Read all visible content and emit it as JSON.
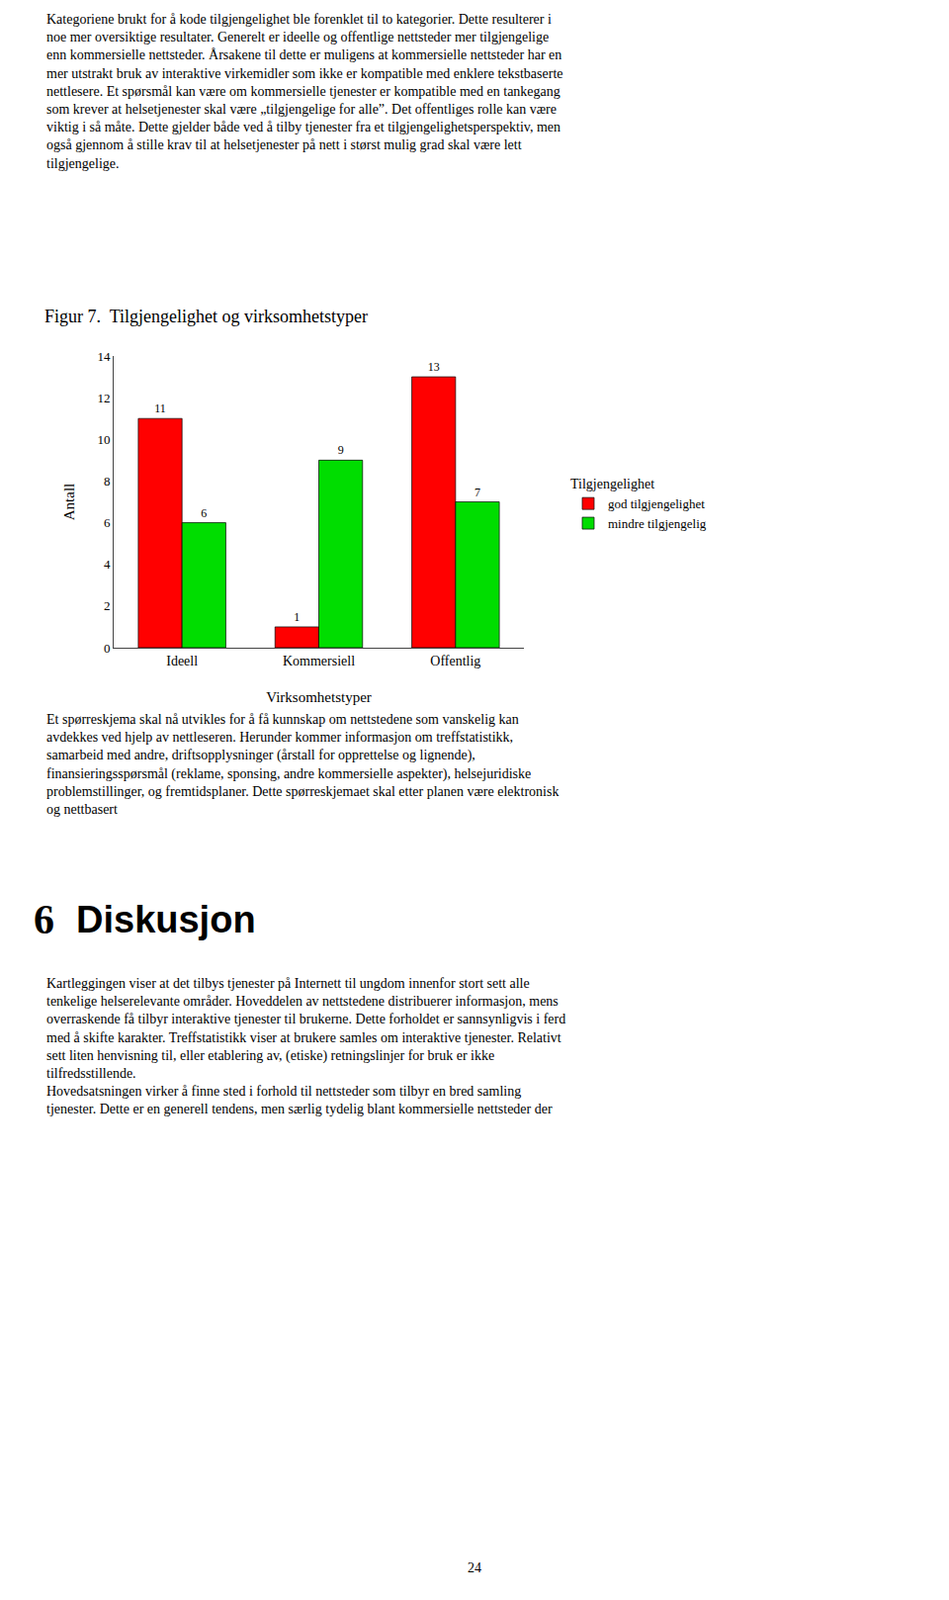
{
  "chart_data": {
    "type": "bar",
    "title": "Figur 7.  Tilgjengelighet og virksomhetstyper",
    "categories": [
      "Ideell",
      "Kommersiell",
      "Offentlig"
    ],
    "series": [
      {
        "name": "god tilgjengelighet",
        "color": "#ff0000",
        "values": [
          11,
          1,
          13
        ]
      },
      {
        "name": "mindre tilgjengelig",
        "color": "#00dd00",
        "values": [
          6,
          9,
          7
        ]
      }
    ],
    "xlabel": "Virksomhetstyper",
    "ylabel": "Antall",
    "ylim": [
      0,
      14
    ],
    "yticks": [
      0,
      2,
      4,
      6,
      8,
      10,
      12,
      14
    ],
    "legend_title": "Tilgjengelighet",
    "legend": "right",
    "grid": false,
    "data_labels": true,
    "annotations": [
      "Kategoriene brukt for å kode tilgjengelighet ble forenklet til to kategorier. Dette resulterer i\nnoe mer oversiktige resultater. Generelt er ideelle og offentlige nettsteder mer tilgjengelige\nenn kommersielle nettsteder. Årsakene til dette er muligens at kommersielle nettsteder har en\nmer utstrakt bruk av interaktive virkemidler som ikke er kompatible med enklere tekstbaserte\nnettlesere. Et spørsmål kan være om kommersielle tjenester er kompatible med en tankegang\nsom krever at helsetjenester skal være „tilgjengelige for alle”. Det offentliges rolle kan være\nviktig i så måte. Dette gjelder både ved å tilby tjenester fra et tilgjengelighetsperspektiv, men\nogså gjennom å stille krav til at helsetjenester på nett i størst mulig grad skal være lett\ntilgjengelige.",
      "Et spørreskjema skal nå utvikles for å få kunnskap om nettstedene som vanskelig kan\navdekkes ved hjelp av nettleseren. Herunder kommer informasjon om treffstatistikk,\nsamarbeid med andre, driftsopplysninger (årstall for opprettelse og lignende),\nfinansieringsspørsmål (reklame, sponsing, andre kommersielle aspekter), helsejuridiske\nproblemstillinger, og fremtidsplaner. Dette spørreskjemaet skal etter planen være elektronisk\nog nettbasert",
      "6",
      "Diskusjon",
      "Kartleggingen viser at det tilbys tjenester på Internett til ungdom innenfor stort sett alle\ntenkelige helserelevante områder. Hoveddelen av nettstedene distribuerer informasjon, mens\noverraskende få tilbyr interaktive tjenester til brukerne. Dette forholdet er sannsynligvis i ferd\nmed å skifte karakter. Treffstatistikk viser at brukere samles om interaktive tjenester. Relativt\nsett liten henvisning til, eller etablering av, (etiske) retningslinjer for bruk er ikke\ntilfredsstillende.",
      "Hovedsatsningen virker å finne sted i forhold til nettsteder som tilbyr en bred samling\ntjenester. Dette er en generell tendens, men særlig tydelig blant kommersielle nettsteder der",
      "24"
    ]
  }
}
